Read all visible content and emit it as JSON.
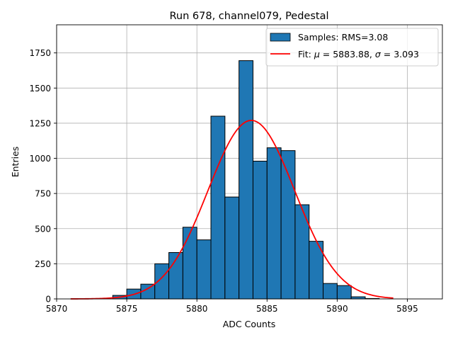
{
  "chart_data": {
    "type": "bar",
    "title": "Run 678, channel079, Pedestal",
    "xlabel": "ADC Counts",
    "ylabel": "Entries",
    "xlim": [
      5870,
      5897.5
    ],
    "ylim": [
      0,
      1950
    ],
    "grid": true,
    "legend_placement": "top-right",
    "x_ticks": [
      5870,
      5875,
      5880,
      5885,
      5890,
      5895
    ],
    "y_ticks": [
      0,
      250,
      500,
      750,
      1000,
      1250,
      1500,
      1750
    ],
    "histogram": {
      "name": "Samples: RMS=3.08",
      "bin_width": 1,
      "bin_left_edges": [
        5874,
        5875,
        5876,
        5877,
        5878,
        5879,
        5880,
        5881,
        5882,
        5883,
        5884,
        5885,
        5886,
        5887,
        5888,
        5889,
        5890,
        5891,
        5892
      ],
      "values": [
        25,
        70,
        105,
        250,
        330,
        510,
        420,
        1300,
        725,
        1695,
        980,
        1075,
        1055,
        670,
        410,
        110,
        95,
        15,
        3
      ],
      "color": "#1f77b4"
    },
    "fit": {
      "name_prefix": "Fit: ",
      "mu_symbol": "μ",
      "mu_text": " = 5883.88, ",
      "sigma_symbol": "σ",
      "sigma_text": " = 3.093",
      "mu": 5883.88,
      "sigma": 3.093,
      "amplitude": 1270,
      "x_range": [
        5871,
        5894
      ],
      "color": "#ff0000"
    }
  }
}
